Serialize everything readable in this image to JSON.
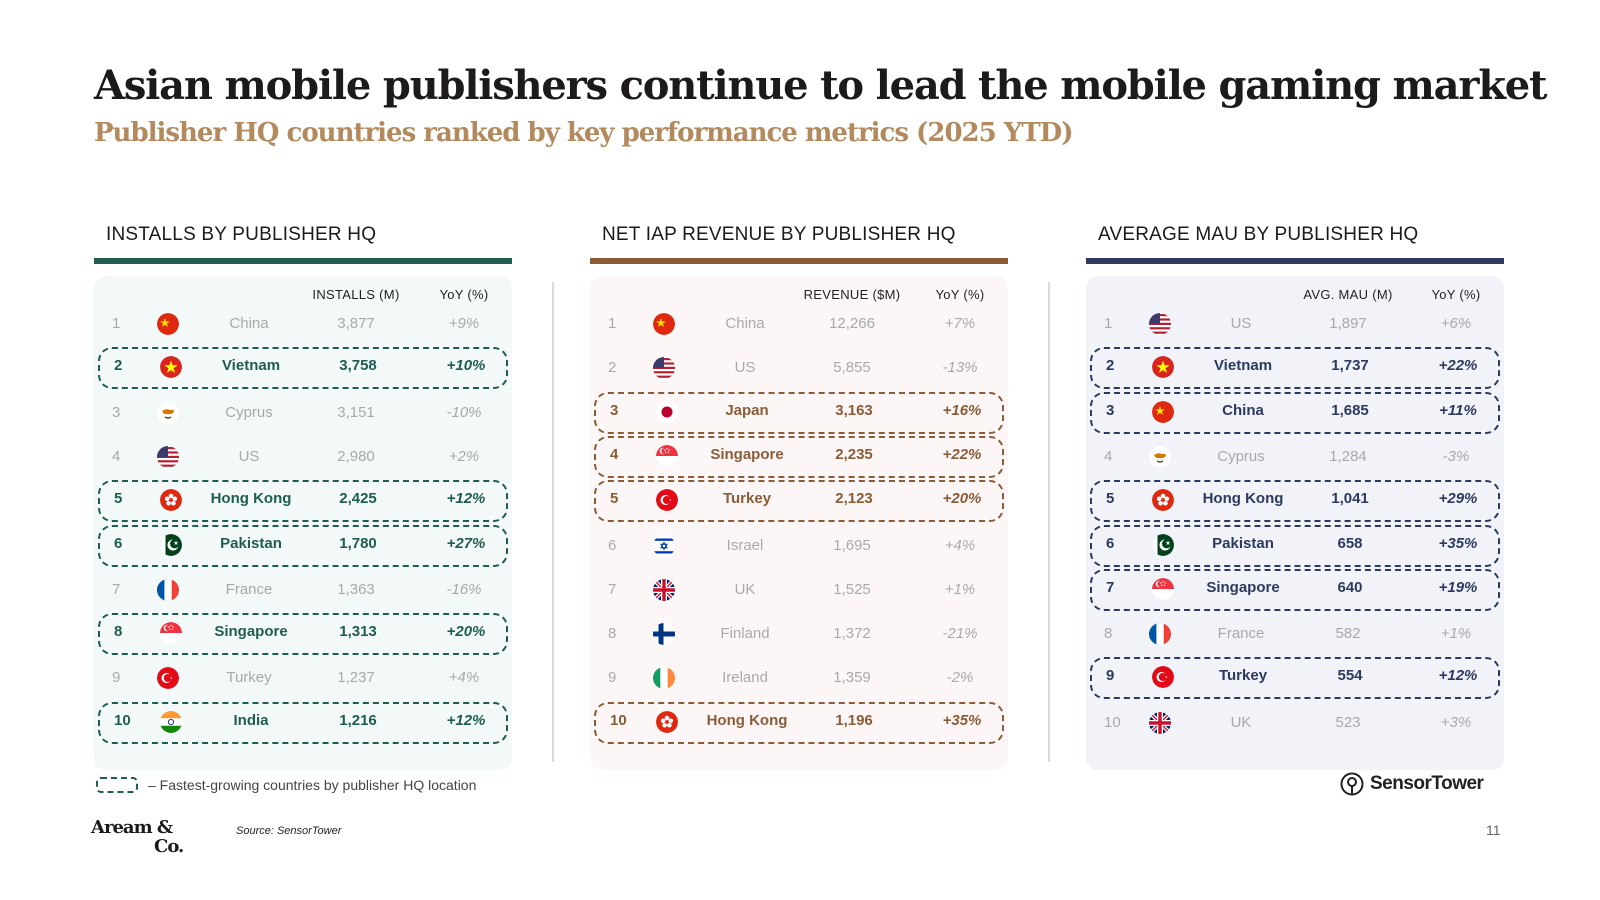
{
  "title": "Asian mobile publishers continue to lead the mobile gaming market",
  "subtitle": "Publisher HQ countries ranked by key performance metrics (2025 YTD)",
  "colors": {
    "installs_accent": "#1f5c52",
    "revenue_accent": "#8a5c37",
    "mau_accent": "#2c3a5e",
    "installs_bg": "#f3f9f8",
    "revenue_bg": "#fcf7f6",
    "mau_bg": "#f2f3f8"
  },
  "panels": [
    {
      "heading": "INSTALLS BY PUBLISHER HQ",
      "value_header": "INSTALLS (M)",
      "yoy_header": "YoY (%)",
      "rows": [
        {
          "rank": "1",
          "country": "China",
          "value": "3,877",
          "yoy": "+9%",
          "flag": "china-flag-icon",
          "highlight": false
        },
        {
          "rank": "2",
          "country": "Vietnam",
          "value": "3,758",
          "yoy": "+10%",
          "flag": "vietnam-flag-icon",
          "highlight": true
        },
        {
          "rank": "3",
          "country": "Cyprus",
          "value": "3,151",
          "yoy": "-10%",
          "flag": "cyprus-flag-icon",
          "highlight": false
        },
        {
          "rank": "4",
          "country": "US",
          "value": "2,980",
          "yoy": "+2%",
          "flag": "us-flag-icon",
          "highlight": false
        },
        {
          "rank": "5",
          "country": "Hong Kong",
          "value": "2,425",
          "yoy": "+12%",
          "flag": "hong-kong-flag-icon",
          "highlight": true
        },
        {
          "rank": "6",
          "country": "Pakistan",
          "value": "1,780",
          "yoy": "+27%",
          "flag": "pakistan-flag-icon",
          "highlight": true
        },
        {
          "rank": "7",
          "country": "France",
          "value": "1,363",
          "yoy": "-16%",
          "flag": "france-flag-icon",
          "highlight": false
        },
        {
          "rank": "8",
          "country": "Singapore",
          "value": "1,313",
          "yoy": "+20%",
          "flag": "singapore-flag-icon",
          "highlight": true
        },
        {
          "rank": "9",
          "country": "Turkey",
          "value": "1,237",
          "yoy": "+4%",
          "flag": "turkey-flag-icon",
          "highlight": false
        },
        {
          "rank": "10",
          "country": "India",
          "value": "1,216",
          "yoy": "+12%",
          "flag": "india-flag-icon",
          "highlight": true
        }
      ]
    },
    {
      "heading": "NET IAP REVENUE BY PUBLISHER HQ",
      "value_header": "REVENUE ($M)",
      "yoy_header": "YoY (%)",
      "rows": [
        {
          "rank": "1",
          "country": "China",
          "value": "12,266",
          "yoy": "+7%",
          "flag": "china-flag-icon",
          "highlight": false
        },
        {
          "rank": "2",
          "country": "US",
          "value": "5,855",
          "yoy": "-13%",
          "flag": "us-flag-icon",
          "highlight": false
        },
        {
          "rank": "3",
          "country": "Japan",
          "value": "3,163",
          "yoy": "+16%",
          "flag": "japan-flag-icon",
          "highlight": true
        },
        {
          "rank": "4",
          "country": "Singapore",
          "value": "2,235",
          "yoy": "+22%",
          "flag": "singapore-flag-icon",
          "highlight": true
        },
        {
          "rank": "5",
          "country": "Turkey",
          "value": "2,123",
          "yoy": "+20%",
          "flag": "turkey-flag-icon",
          "highlight": true
        },
        {
          "rank": "6",
          "country": "Israel",
          "value": "1,695",
          "yoy": "+4%",
          "flag": "israel-flag-icon",
          "highlight": false
        },
        {
          "rank": "7",
          "country": "UK",
          "value": "1,525",
          "yoy": "+1%",
          "flag": "uk-flag-icon",
          "highlight": false
        },
        {
          "rank": "8",
          "country": "Finland",
          "value": "1,372",
          "yoy": "-21%",
          "flag": "finland-flag-icon",
          "highlight": false
        },
        {
          "rank": "9",
          "country": "Ireland",
          "value": "1,359",
          "yoy": "-2%",
          "flag": "ireland-flag-icon",
          "highlight": false
        },
        {
          "rank": "10",
          "country": "Hong Kong",
          "value": "1,196",
          "yoy": "+35%",
          "flag": "hong-kong-flag-icon",
          "highlight": true
        }
      ]
    },
    {
      "heading": "AVERAGE MAU BY PUBLISHER HQ",
      "value_header": "AVG. MAU (M)",
      "yoy_header": "YoY (%)",
      "rows": [
        {
          "rank": "1",
          "country": "US",
          "value": "1,897",
          "yoy": "+6%",
          "flag": "us-flag-icon",
          "highlight": false
        },
        {
          "rank": "2",
          "country": "Vietnam",
          "value": "1,737",
          "yoy": "+22%",
          "flag": "vietnam-flag-icon",
          "highlight": true
        },
        {
          "rank": "3",
          "country": "China",
          "value": "1,685",
          "yoy": "+11%",
          "flag": "china-flag-icon",
          "highlight": true
        },
        {
          "rank": "4",
          "country": "Cyprus",
          "value": "1,284",
          "yoy": "-3%",
          "flag": "cyprus-flag-icon",
          "highlight": false
        },
        {
          "rank": "5",
          "country": "Hong Kong",
          "value": "1,041",
          "yoy": "+29%",
          "flag": "hong-kong-flag-icon",
          "highlight": true
        },
        {
          "rank": "6",
          "country": "Pakistan",
          "value": "658",
          "yoy": "+35%",
          "flag": "pakistan-flag-icon",
          "highlight": true
        },
        {
          "rank": "7",
          "country": "Singapore",
          "value": "640",
          "yoy": "+19%",
          "flag": "singapore-flag-icon",
          "highlight": true
        },
        {
          "rank": "8",
          "country": "France",
          "value": "582",
          "yoy": "+1%",
          "flag": "france-flag-icon",
          "highlight": false
        },
        {
          "rank": "9",
          "country": "Turkey",
          "value": "554",
          "yoy": "+12%",
          "flag": "turkey-flag-icon",
          "highlight": true
        },
        {
          "rank": "10",
          "country": "UK",
          "value": "523",
          "yoy": "+3%",
          "flag": "uk-flag-icon",
          "highlight": false
        }
      ]
    }
  ],
  "legend_text": "– Fastest-growing countries by publisher HQ location",
  "source": "Source: SensorTower",
  "brand": {
    "line1": "Aream &",
    "line2": "Co."
  },
  "sensortower_logo": "SensorTower",
  "page_number": "11"
}
